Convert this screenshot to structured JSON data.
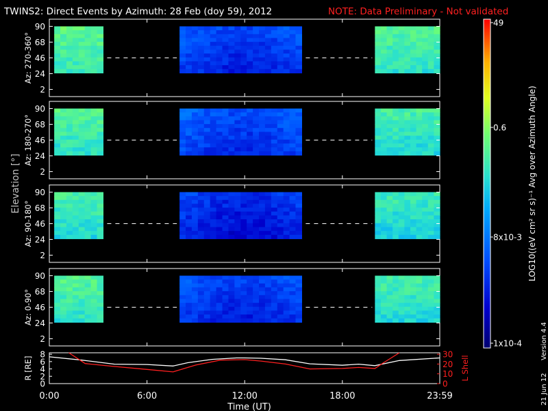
{
  "header": {
    "title": "TWINS2: Direct Events by Azimuth: 28 Feb (doy  59), 2012",
    "note": "NOTE: Data Preliminary - Not validated",
    "note_color": "#ff2020"
  },
  "side": {
    "date": "21 Jun 12",
    "version": "Version 4.4"
  },
  "chart_data": [
    {
      "type": "heatmap",
      "xlabel": "Time (UT)",
      "x_tick_labels": [
        "0:00",
        "6:00",
        "12:00",
        "18:00",
        "23:59"
      ],
      "x_ticks_hours": [
        0,
        6,
        12,
        18,
        23.983
      ],
      "xlim_hours": [
        0,
        23.983
      ],
      "ylabel": "Elevation [°]",
      "y_tick_labels": [
        "2",
        "24",
        "46",
        "68",
        "90"
      ],
      "ylim": [
        -8,
        100
      ],
      "colorbar": {
        "tick_labels": [
          "49",
          "0.6",
          "8x10-3",
          "1x10-4"
        ],
        "label": "LOG10((eV cm² sr s)⁻¹ Avg over Azimuth Angle)",
        "scale": "log",
        "range": [
          "1x10-4",
          "49"
        ]
      },
      "coverage_blocks": [
        {
          "start_h": 0.3,
          "end_h": 3.3,
          "elev_min": 25,
          "elev_max": 90
        },
        {
          "start_h": 8.0,
          "end_h": 15.5,
          "elev_min": 25,
          "elev_max": 90
        },
        {
          "start_h": 20.0,
          "end_h": 23.983,
          "elev_min": 25,
          "elev_max": 90
        }
      ],
      "gap_line_elevation": 46,
      "panels": [
        {
          "label": "Az: 270-360°",
          "intensity": [
            0.62,
            0.3,
            0.6
          ]
        },
        {
          "label": "Az: 180-270°",
          "intensity": [
            0.6,
            0.32,
            0.58
          ]
        },
        {
          "label": "Az: 90-180°",
          "intensity": [
            0.58,
            0.26,
            0.56
          ]
        },
        {
          "label": "Az: 0-90°",
          "intensity": [
            0.6,
            0.3,
            0.58
          ]
        }
      ]
    },
    {
      "type": "line",
      "xlabel": "Time (UT)",
      "left_axis": {
        "label": "R [RE]",
        "tick_labels": [
          "0",
          "2",
          "4",
          "6",
          "8"
        ],
        "ylim": [
          0,
          8.4
        ]
      },
      "right_axis": {
        "label": "L Shell",
        "tick_labels": [
          "0",
          "10",
          "20",
          "30"
        ],
        "ylim": [
          0,
          31.5
        ],
        "color": "#ff2020"
      },
      "series": [
        {
          "name": "R [RE]",
          "color": "#ffffff",
          "x_hours": [
            0,
            2,
            4,
            6,
            7.6,
            8.5,
            10,
            11.5,
            12,
            13,
            14.5,
            16,
            18,
            19,
            20,
            21.5,
            23.983
          ],
          "values": [
            7.3,
            6.4,
            5.3,
            5.2,
            4.8,
            5.7,
            6.6,
            7.0,
            7.0,
            6.9,
            6.5,
            5.4,
            5.0,
            5.3,
            4.9,
            6.3,
            7.0
          ]
        },
        {
          "name": "L Shell",
          "color": "#ff2020",
          "x_hours": [
            1.2,
            2.2,
            4,
            6,
            7.6,
            9,
            10.5,
            12,
            13,
            14.5,
            16,
            18,
            19,
            20,
            20.5,
            21.5
          ],
          "values": [
            31.5,
            20.5,
            17.5,
            14.5,
            12,
            19,
            24,
            24.5,
            23,
            20,
            15,
            15.5,
            16.5,
            15.5,
            21,
            31.5
          ]
        }
      ]
    }
  ]
}
